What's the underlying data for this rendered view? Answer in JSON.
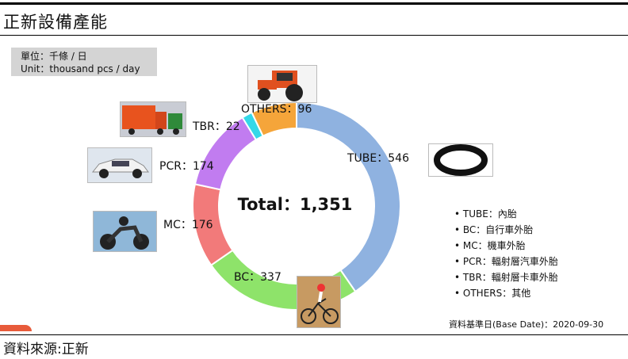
{
  "page": {
    "title": "正新設備產能",
    "unit_line1": "單位：千條 / 日",
    "unit_line2": "Unit：thousand pcs / day",
    "source": "資料來源:正新",
    "base_date": "資料基準日(Base Date)：2020-09-30"
  },
  "legend": [
    "• TUBE：內胎",
    "• BC：自行車外胎",
    "• MC：機車外胎",
    "• PCR：輻射層汽車外胎",
    "• TBR：輻射層卡車外胎",
    "• OTHERS：其他"
  ],
  "photos": [
    "tractor-photo",
    "truck-photo",
    "car-photo",
    "motorcycle-photo",
    "tube-photo",
    "bicycle-photo"
  ],
  "chart_data": {
    "type": "pie",
    "donut": true,
    "title": "",
    "center_label": "Total：1,351",
    "total": 1351,
    "slices": [
      {
        "name": "TUBE",
        "label": "TUBE：546",
        "value": 546,
        "color": "#8fb2e0"
      },
      {
        "name": "BC",
        "label": "BC：337",
        "value": 337,
        "color": "#8ee36a"
      },
      {
        "name": "MC",
        "label": "MC：176",
        "value": 176,
        "color": "#f27a7a"
      },
      {
        "name": "PCR",
        "label": "PCR：174",
        "value": 174,
        "color": "#c17cf0"
      },
      {
        "name": "TBR",
        "label": "TBR：22",
        "value": 22,
        "color": "#34d8e8"
      },
      {
        "name": "OTHERS",
        "label": "OTHERS：96",
        "value": 96,
        "color": "#f5a53a"
      }
    ]
  }
}
